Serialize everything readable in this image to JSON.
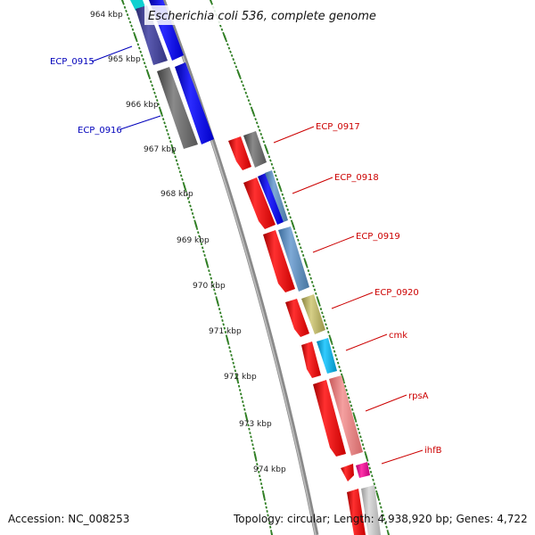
{
  "title": "Escherichia coli 536, complete genome",
  "footer": {
    "accession": "Accession: NC_008253",
    "summary": "Topology: circular; Length: 4,938,920 bp; Genes: 4,722"
  },
  "colors": {
    "forward_label": "#0000bb",
    "reverse_label": "#cc0000",
    "tick": "#2e7d22",
    "backbone": "#888888"
  },
  "kbp_labels": [
    "964 kbp",
    "965 kbp",
    "966 kbp",
    "967 kbp",
    "968 kbp",
    "969 kbp",
    "970 kbp",
    "971 kbp",
    "972 kbp",
    "973 kbp",
    "974 kbp"
  ],
  "gene_labels": [
    {
      "name": "ECP_0915",
      "strand": "forward"
    },
    {
      "name": "ECP_0916",
      "strand": "forward"
    },
    {
      "name": "ECP_0917",
      "strand": "reverse"
    },
    {
      "name": "ECP_0918",
      "strand": "reverse"
    },
    {
      "name": "ECP_0919",
      "strand": "reverse"
    },
    {
      "name": "ECP_0920",
      "strand": "reverse"
    },
    {
      "name": "cmk",
      "strand": "reverse"
    },
    {
      "name": "rpsA",
      "strand": "reverse"
    },
    {
      "name": "ihfB",
      "strand": "reverse"
    }
  ]
}
